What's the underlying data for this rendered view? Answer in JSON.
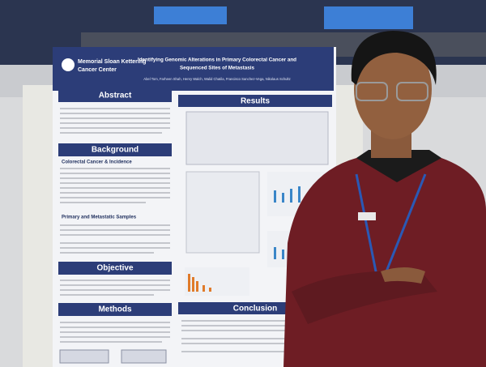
{
  "poster": {
    "institution_lines": [
      "Memorial Sloan Kettering",
      "Cancer Center"
    ],
    "title_lines": [
      "Identifying Genomic Alterations in Primary Colorectal Cancer and",
      "Sequenced Sites of Metastasis"
    ],
    "authors": "Abel Tom, Farheen Shah, Henry Walch, Walid Chatila, Francisco Sanchez-Vega, Nikolaus Schultz",
    "sections": {
      "abstract": "Abstract",
      "background": "Background",
      "background_sub_1": "Colorectal Cancer & Incidence",
      "background_sub_2": "Primary and Metastatic Samples",
      "objective": "Objective",
      "methods": "Methods",
      "results": "Results",
      "conclusion": "Conclusion"
    }
  }
}
